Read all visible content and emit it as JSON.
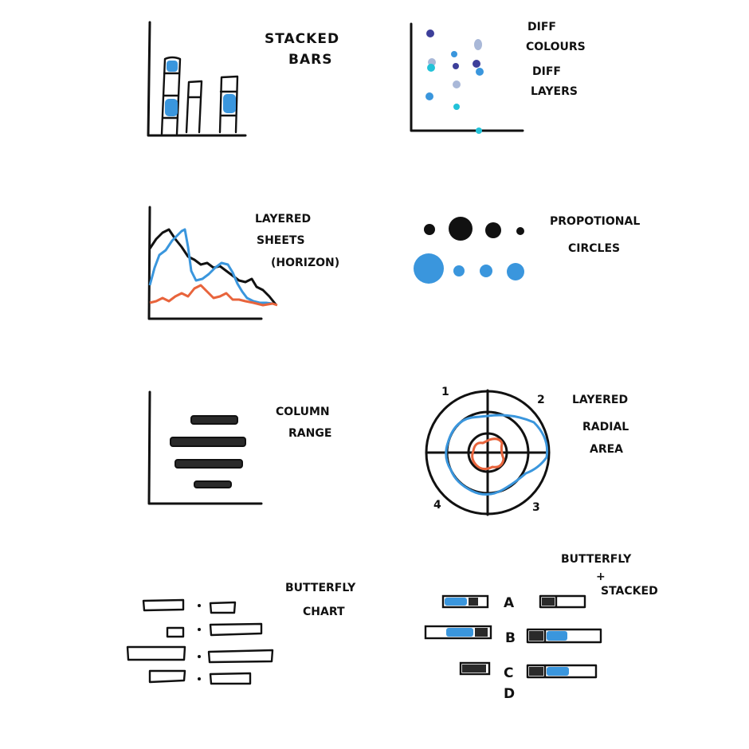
{
  "colors": {
    "ink": "#111111",
    "blue": "#3a96dd",
    "orange": "#e8643c",
    "navy": "#3d3f9a",
    "light_blue": "#a9b8d8",
    "cyan": "#22c2d8"
  },
  "panels": {
    "stacked_bars": {
      "title_line1": "STACKED",
      "title_line2": "BARS"
    },
    "scatter": {
      "label_line1": "DIFF",
      "label_line2": "COLOURS",
      "label_line3": "DIFF",
      "label_line4": "LAYERS"
    },
    "layered_sheets": {
      "title_line1": "LAYERED",
      "title_line2": "SHEETS",
      "title_line3": "(HORIZON)"
    },
    "proportional_circles": {
      "title_line1": "PROPOTIONAL",
      "title_line2": "CIRCLES"
    },
    "column_range": {
      "title_line1": "COLUMN",
      "title_line2": "RANGE"
    },
    "radial_area": {
      "title_line1": "LAYERED",
      "title_line2": "RADIAL",
      "title_line3": "AREA",
      "quadrants": [
        "1",
        "2",
        "3",
        "4"
      ]
    },
    "butterfly_chart": {
      "title_line1": "BUTTERFLY",
      "title_line2": "CHART"
    },
    "butterfly_stacked": {
      "title_line1": "BUTTERFLY",
      "title_line2": "+",
      "title_line3": "STACKED",
      "categories": [
        "A",
        "B",
        "C",
        "D"
      ]
    }
  }
}
